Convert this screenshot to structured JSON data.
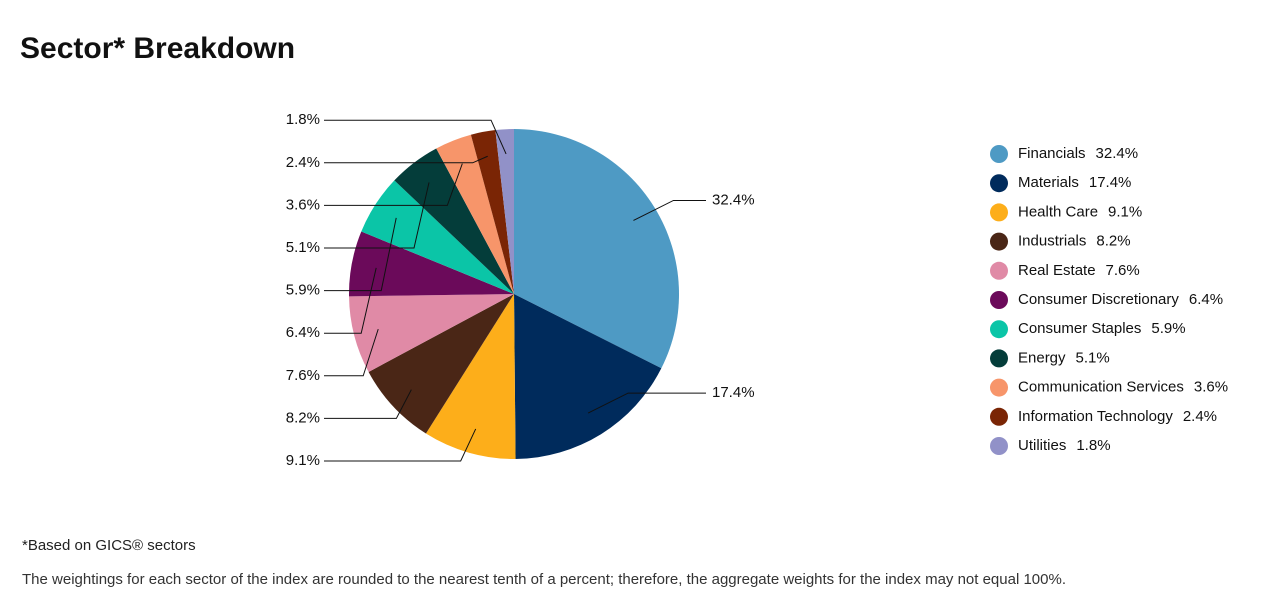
{
  "chart_data": {
    "type": "pie",
    "title": "Sector* Breakdown",
    "categories": [
      "Financials",
      "Materials",
      "Health Care",
      "Industrials",
      "Real Estate",
      "Consumer Discretionary",
      "Consumer Staples",
      "Energy",
      "Communication Services",
      "Information Technology",
      "Utilities"
    ],
    "values": [
      32.4,
      17.4,
      9.1,
      8.2,
      7.6,
      6.4,
      5.9,
      5.1,
      3.6,
      2.4,
      1.8
    ],
    "value_labels": [
      "32.4%",
      "17.4%",
      "9.1%",
      "8.2%",
      "7.6%",
      "6.4%",
      "5.9%",
      "5.1%",
      "3.6%",
      "2.4%",
      "1.8%"
    ],
    "colors": [
      "#4e9ac4",
      "#002b5c",
      "#fdae1a",
      "#4a2616",
      "#e08aa6",
      "#6b0a5a",
      "#0bc5a7",
      "#043d3a",
      "#f7956a",
      "#7a2505",
      "#9191c8"
    ],
    "legend": "right"
  },
  "footnotes": [
    "*Based on GICS® sectors",
    "The weightings for each sector of the index are rounded to the nearest tenth of a percent; therefore, the aggregate weights for the index may not equal 100%."
  ]
}
